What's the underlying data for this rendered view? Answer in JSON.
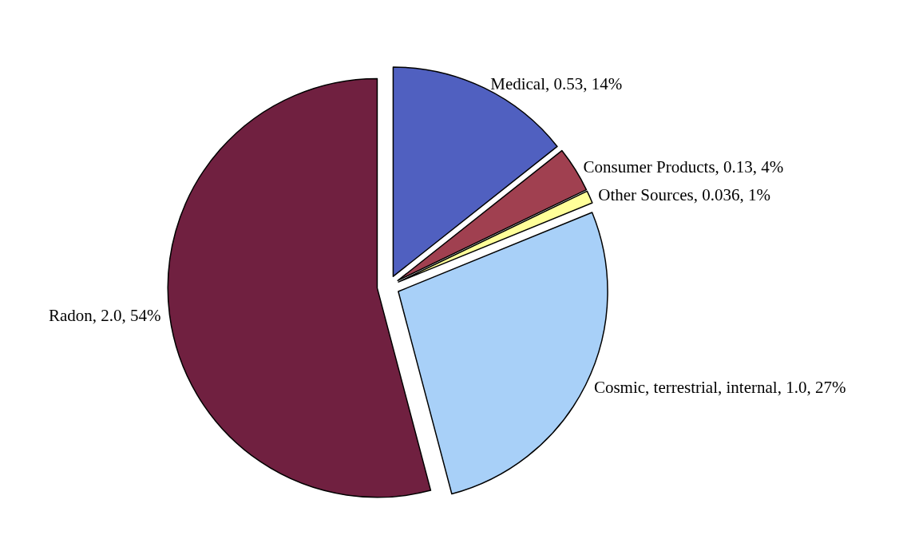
{
  "chart_data": {
    "type": "pie",
    "categories": [
      "Medical",
      "Consumer Products",
      "Other Sources",
      "Cosmic, terrestrial, internal",
      "Radon"
    ],
    "values": [
      0.53,
      0.13,
      0.036,
      1.0,
      2.0
    ],
    "value_labels": [
      "0.53, 14%",
      "0.13, 4%",
      "0.036, 1%",
      "1.0, 27%",
      "2.0, 54%"
    ],
    "colors": [
      "#5060c0",
      "#a04050",
      "#ffff99",
      "#a8d0f8",
      "#702040"
    ],
    "legend": false
  }
}
